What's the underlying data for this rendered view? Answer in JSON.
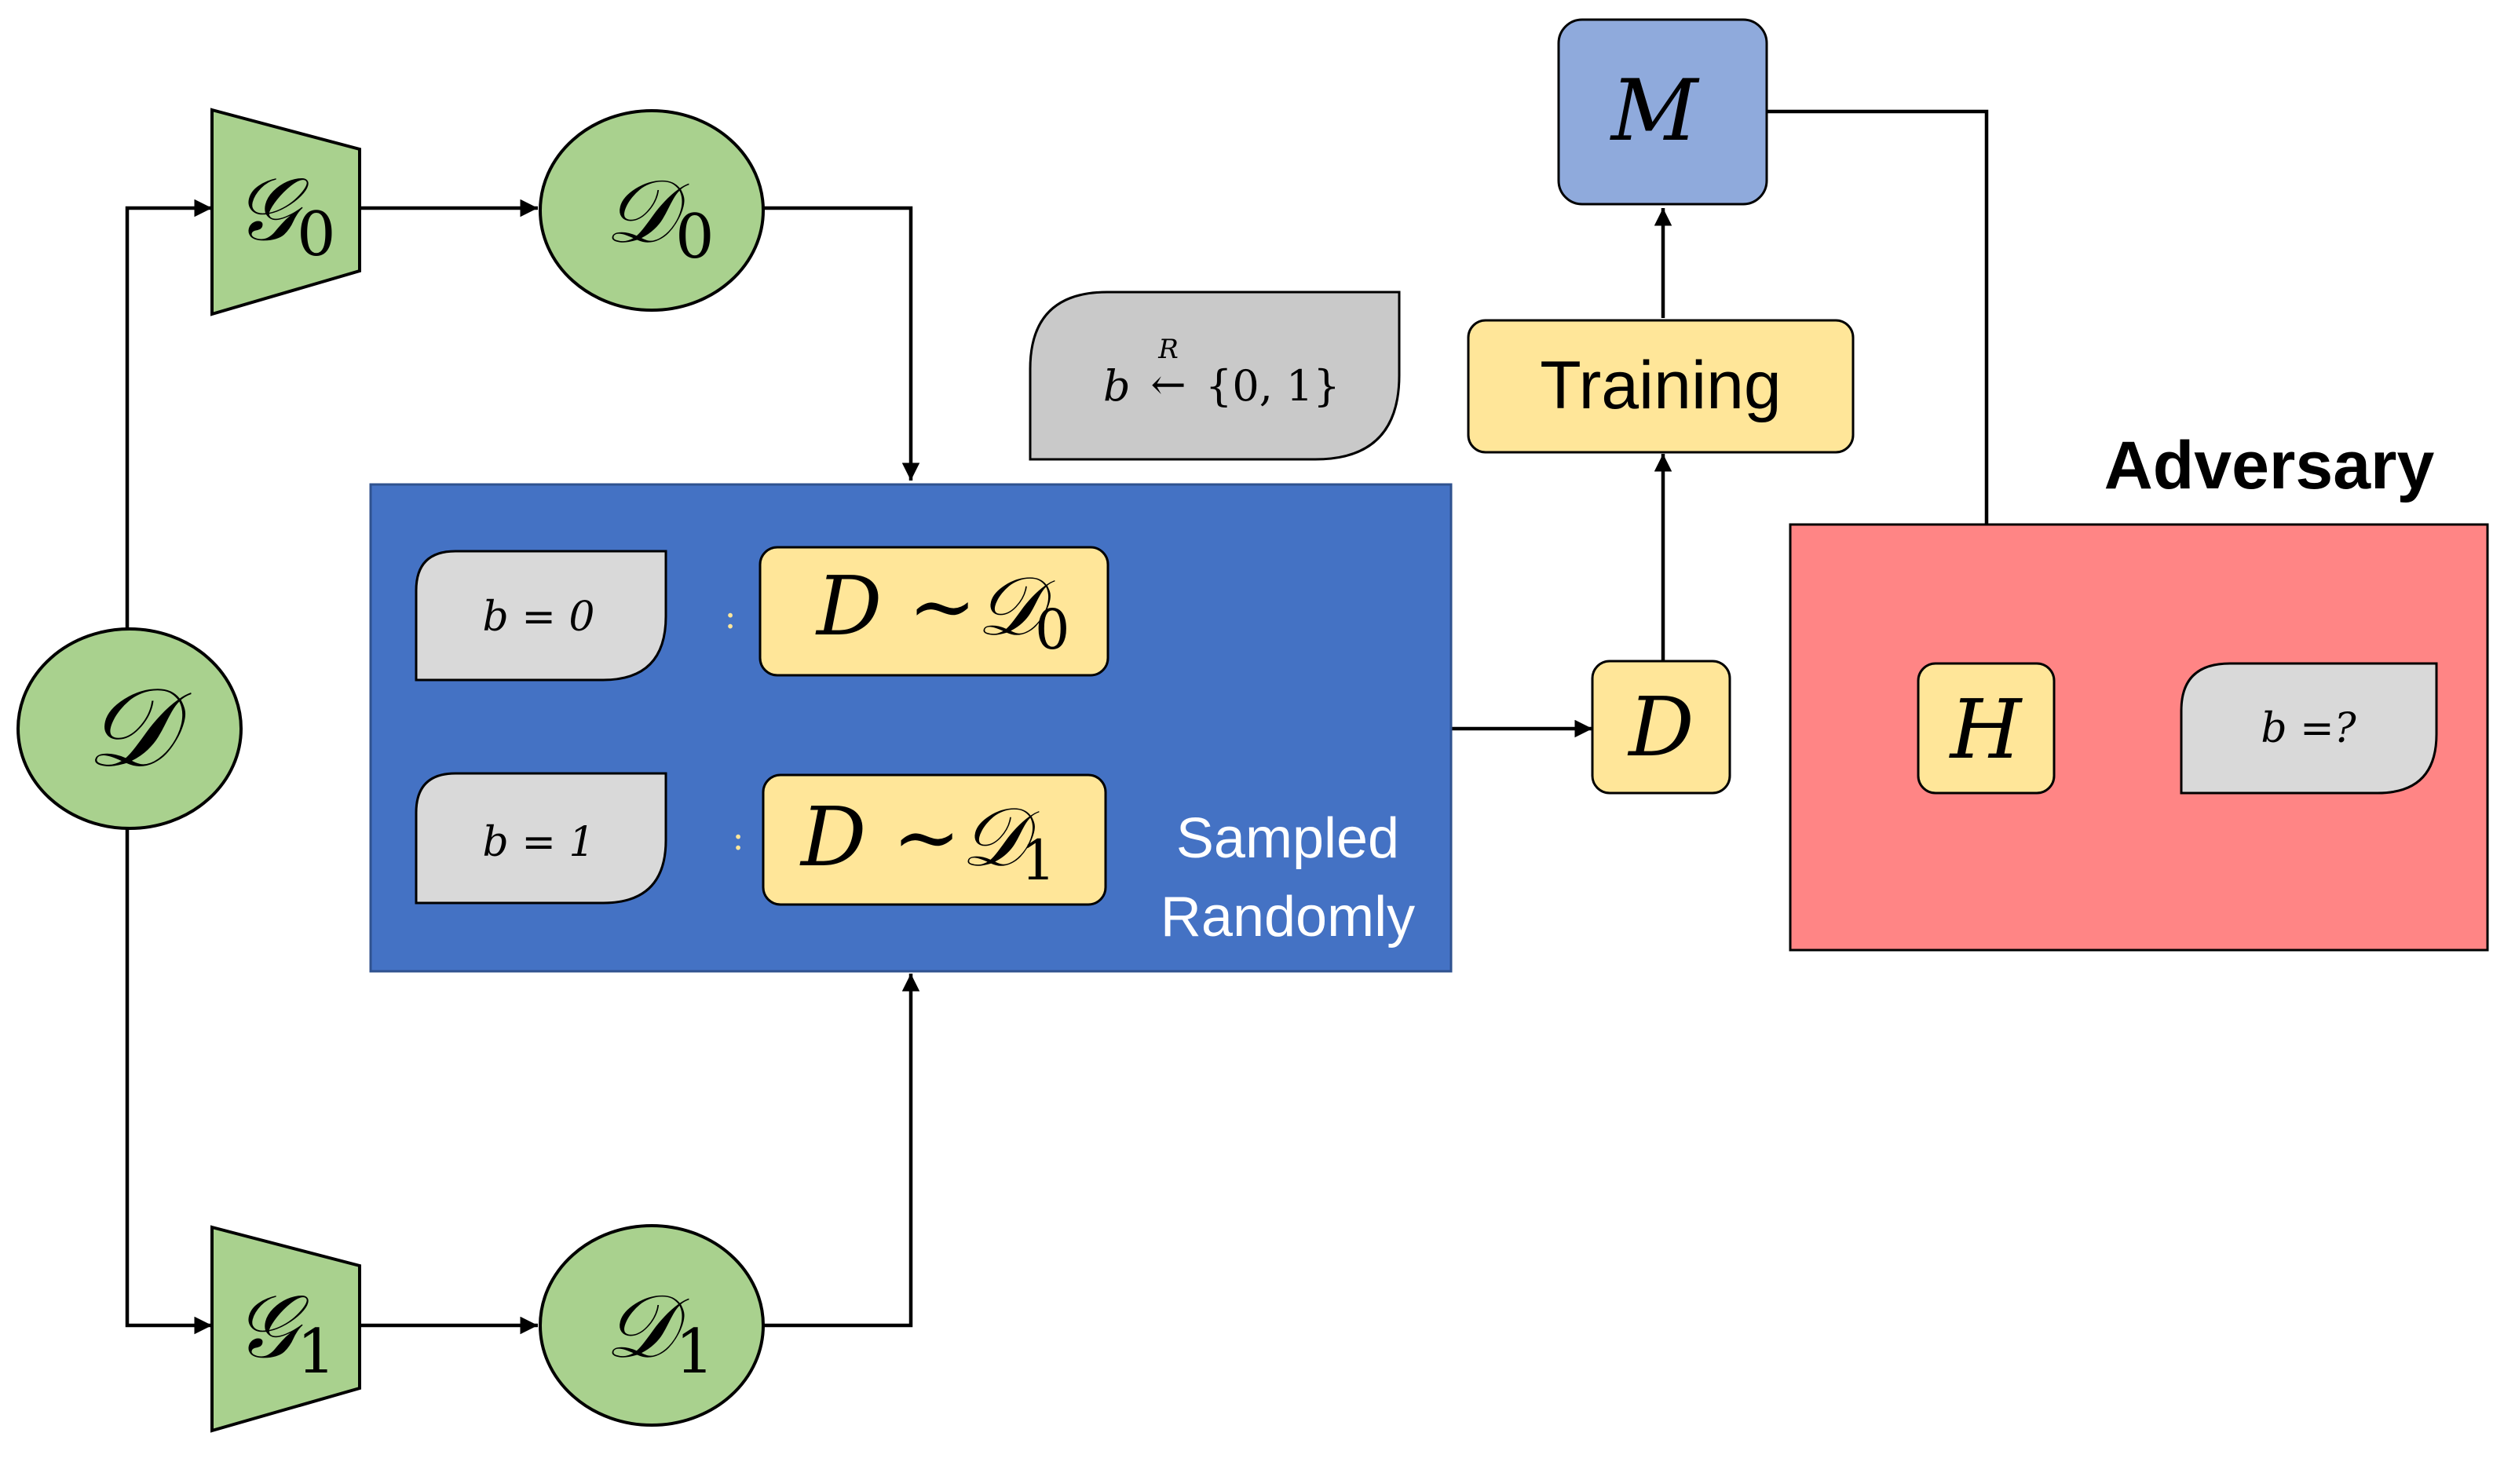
{
  "nodes": {
    "d_root": {
      "sym": "𝒟"
    },
    "g0": {
      "sym": "𝒢",
      "sub": "0"
    },
    "g1": {
      "sym": "𝒢",
      "sub": "1"
    },
    "d0": {
      "sym": "𝒟",
      "sub": "0"
    },
    "d1": {
      "sym": "𝒟",
      "sub": "1"
    },
    "model": {
      "sym": "M"
    },
    "training": {
      "label": "Training"
    },
    "dataset_out": {
      "sym": "D"
    },
    "hyp": {
      "sym": "H"
    }
  },
  "coin": {
    "var": "b",
    "arrow": "←",
    "over": "R",
    "set": "{0, 1}"
  },
  "sampler": {
    "rows": [
      {
        "cond": "b = 0",
        "sep": ":",
        "sample": "D ∼𝒟",
        "sub": "0"
      },
      {
        "cond": "b = 1",
        "sep": ":",
        "sample": "D ∼𝒟",
        "sub": "1"
      }
    ],
    "caption_line1": "Sampled",
    "caption_line2": "Randomly"
  },
  "adversary": {
    "title": "Adversary",
    "guess": "b =?"
  },
  "colors": {
    "green": "#a9d18e",
    "blue_box": "#4472c4",
    "model_blue": "#8faadc",
    "yellow": "#ffe699",
    "gray": "#d9d9d9",
    "gray_dark": "#c9c9c9",
    "red": "#ff8585"
  }
}
